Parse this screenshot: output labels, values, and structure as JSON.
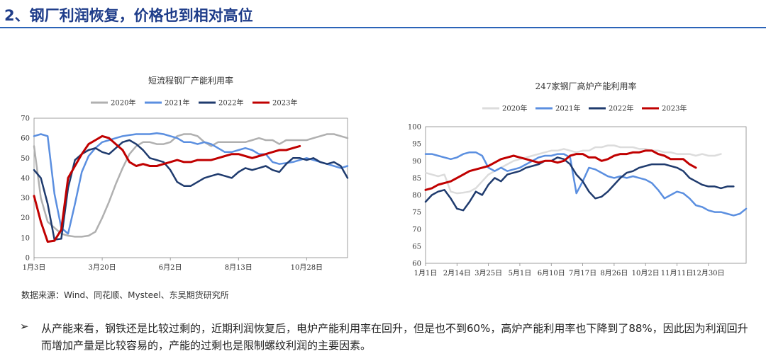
{
  "header": {
    "title": "2、钢厂利润恢复，价格也到相对高位"
  },
  "chart_data": [
    {
      "type": "line",
      "title": "短流程钢厂产能利用率",
      "x_ticks": [
        "1月3日",
        "3月20日",
        "6月2日",
        "8月13日",
        "10月28日"
      ],
      "x_ticks_at": [
        1,
        11,
        21,
        31,
        41
      ],
      "x_range": [
        1,
        47
      ],
      "ylim": [
        0,
        70
      ],
      "y_ticks": [
        0,
        10,
        20,
        30,
        40,
        50,
        60,
        70
      ],
      "legend_position": "top",
      "colors": [
        "#b0b0b0",
        "#5b8fe0",
        "#1f3b6e",
        "#c00000"
      ],
      "series": [
        {
          "name": "2020年",
          "x": [
            1,
            2,
            3,
            4,
            5,
            6,
            7,
            8,
            9,
            10,
            11,
            12,
            13,
            14,
            15,
            16,
            17,
            18,
            19,
            20,
            21,
            22,
            23,
            24,
            25,
            26,
            27,
            28,
            29,
            30,
            31,
            32,
            33,
            34,
            35,
            36,
            37,
            38,
            39,
            40,
            41,
            42,
            43,
            44,
            45,
            46,
            47
          ],
          "y": [
            56,
            30,
            18,
            15,
            12,
            11,
            10.5,
            10.5,
            11,
            13,
            20,
            28,
            37,
            45,
            52,
            56,
            58,
            58,
            57,
            57,
            58,
            61,
            62,
            62,
            61,
            58,
            56,
            58,
            58,
            58,
            58,
            58,
            59,
            60,
            59,
            59,
            57,
            59,
            59,
            59,
            59,
            60,
            61,
            62,
            62,
            61,
            60
          ]
        },
        {
          "name": "2021年",
          "x": [
            1,
            2,
            3,
            4,
            5,
            6,
            7,
            8,
            9,
            10,
            11,
            12,
            13,
            14,
            15,
            16,
            17,
            18,
            19,
            20,
            21,
            22,
            23,
            24,
            25,
            26,
            27,
            28,
            29,
            30,
            31,
            32,
            33,
            34,
            35,
            36,
            37,
            38,
            39,
            40,
            41,
            42,
            43,
            44,
            45,
            46,
            47
          ],
          "y": [
            61,
            62,
            61,
            32,
            15,
            12,
            27,
            43,
            51,
            55,
            58,
            59,
            60,
            61,
            61.5,
            62,
            62,
            62,
            62.5,
            62,
            61,
            60,
            58,
            58,
            57,
            58,
            57,
            55,
            53,
            53,
            54,
            55,
            54,
            52,
            52,
            48,
            47,
            47.5,
            48,
            49,
            50,
            49,
            48,
            47,
            46,
            45,
            46
          ]
        },
        {
          "name": "2022年",
          "x": [
            1,
            2,
            3,
            4,
            5,
            6,
            7,
            8,
            9,
            10,
            11,
            12,
            13,
            14,
            15,
            16,
            17,
            18,
            19,
            20,
            21,
            22,
            23,
            24,
            25,
            26,
            27,
            28,
            29,
            30,
            31,
            32,
            33,
            34,
            35,
            36,
            37,
            38,
            39,
            40,
            41,
            42,
            43,
            44,
            45,
            46,
            47
          ],
          "y": [
            44,
            40,
            27,
            9,
            9.5,
            35,
            49,
            52,
            54,
            55,
            53,
            52,
            55,
            58,
            59,
            57,
            54,
            50,
            49,
            48,
            44,
            38,
            36,
            36,
            38,
            40,
            41,
            42,
            41,
            40,
            43,
            45,
            44,
            45,
            46,
            44,
            43,
            47,
            50,
            50,
            49,
            50,
            48,
            47,
            48,
            46,
            40
          ]
        },
        {
          "name": "2023年",
          "x": [
            1,
            2,
            3,
            4,
            5,
            6,
            7,
            8,
            9,
            10,
            11,
            12,
            13,
            14,
            15,
            16,
            17,
            18,
            19,
            20,
            21,
            22,
            23,
            24,
            25,
            26,
            27,
            28,
            29,
            30,
            31,
            32,
            33,
            34,
            35,
            36,
            37,
            38,
            39,
            40
          ],
          "y": [
            31,
            18,
            8,
            8.5,
            14,
            40,
            46,
            52,
            57,
            59,
            61,
            60,
            57,
            54,
            48,
            46,
            47,
            46,
            46,
            47,
            48,
            49,
            48,
            48,
            49,
            49,
            49,
            50,
            51,
            52,
            52,
            51,
            50,
            51,
            52,
            53,
            54,
            54,
            55,
            56
          ]
        }
      ]
    },
    {
      "type": "line",
      "title": "247家钢厂高炉产能利用率",
      "x_ticks": [
        "1月1日",
        "2月14日",
        "3月25日",
        "5月1日",
        "6月10日",
        "7月17日",
        "8月26日",
        "10月2日",
        "11月11日",
        "12月30日"
      ],
      "x_ticks_at": [
        1,
        6,
        11,
        16,
        21,
        26,
        31,
        36,
        41,
        46
      ],
      "x_range": [
        1,
        52
      ],
      "ylim": [
        60,
        100
      ],
      "y_ticks": [
        60,
        65,
        70,
        75,
        80,
        85,
        90,
        95,
        100
      ],
      "legend_position": "top",
      "colors": [
        "#dcdcdc",
        "#5b8fe0",
        "#1f3b6e",
        "#c00000"
      ],
      "series": [
        {
          "name": "2020年",
          "x": [
            1,
            2,
            3,
            4,
            5,
            6,
            7,
            8,
            9,
            10,
            11,
            12,
            13,
            14,
            15,
            16,
            17,
            18,
            19,
            20,
            21,
            22,
            23,
            24,
            25,
            26,
            27,
            28,
            29,
            30,
            31,
            32,
            33,
            34,
            35,
            36,
            37,
            38,
            39,
            40,
            41,
            42,
            43,
            44,
            45,
            46,
            47,
            48
          ],
          "y": [
            86.5,
            86,
            85.5,
            86,
            81,
            80.5,
            80.7,
            81,
            82,
            84,
            86,
            87,
            88,
            89,
            90,
            90.5,
            91,
            91.5,
            92,
            92.5,
            93,
            93,
            93.5,
            93,
            92.5,
            93,
            93,
            94,
            94,
            94.5,
            94.5,
            94,
            94,
            94,
            93.5,
            93.5,
            93,
            93,
            92.5,
            92.5,
            92,
            92,
            92,
            91.5,
            92,
            91.5,
            91.5,
            92
          ]
        },
        {
          "name": "2021年",
          "x": [
            1,
            2,
            3,
            4,
            5,
            6,
            7,
            8,
            9,
            10,
            11,
            12,
            13,
            14,
            15,
            16,
            17,
            18,
            19,
            20,
            21,
            22,
            23,
            24,
            25,
            26,
            27,
            28,
            29,
            30,
            31,
            32,
            33,
            34,
            35,
            36,
            37,
            38,
            39,
            40,
            41,
            42,
            43,
            44,
            45,
            46,
            47,
            48,
            49,
            50,
            51,
            52
          ],
          "y": [
            92,
            92,
            91.5,
            91,
            90.5,
            91,
            92,
            92.5,
            92.5,
            91.5,
            88,
            87,
            88,
            87,
            87.5,
            88,
            89,
            90,
            91,
            91.5,
            91.5,
            92,
            92,
            91,
            80.5,
            84,
            88,
            87.5,
            86.5,
            85.5,
            85,
            85.5,
            85,
            85.5,
            85,
            84.5,
            83.5,
            81.5,
            79,
            80,
            81,
            80.5,
            79,
            77,
            76.5,
            75.5,
            75,
            75,
            74.5,
            74,
            74.5,
            76
          ]
        },
        {
          "name": "2022年",
          "x": [
            1,
            2,
            3,
            4,
            5,
            6,
            7,
            8,
            9,
            10,
            11,
            12,
            13,
            14,
            15,
            16,
            17,
            18,
            19,
            20,
            21,
            22,
            23,
            24,
            25,
            26,
            27,
            28,
            29,
            30,
            31,
            32,
            33,
            34,
            35,
            36,
            37,
            38,
            39,
            40,
            41,
            42,
            43,
            44,
            45,
            46,
            47,
            48,
            49,
            50
          ],
          "y": [
            78,
            80,
            81,
            81.5,
            79,
            76,
            75.5,
            78,
            81,
            80,
            83,
            85,
            84,
            86,
            86.5,
            87,
            88,
            88.5,
            89,
            90,
            90,
            91,
            90.5,
            89,
            86,
            84,
            81,
            79,
            79.5,
            81,
            83,
            85,
            86.5,
            87,
            88,
            88.5,
            89,
            89,
            89,
            88.5,
            88,
            87,
            85,
            84,
            83,
            82.5,
            82.5,
            82,
            82.5,
            82.5
          ]
        },
        {
          "name": "2023年",
          "x": [
            1,
            2,
            3,
            4,
            5,
            6,
            7,
            8,
            9,
            10,
            11,
            12,
            13,
            14,
            15,
            16,
            17,
            18,
            19,
            20,
            21,
            22,
            23,
            24,
            25,
            26,
            27,
            28,
            29,
            30,
            31,
            32,
            33,
            34,
            35,
            36,
            37,
            38,
            39,
            40,
            41,
            42,
            43,
            44
          ],
          "y": [
            81.5,
            82,
            83,
            83.5,
            84,
            85,
            86,
            87,
            87.5,
            88,
            88.5,
            89.5,
            90.5,
            91,
            91.5,
            91,
            90.5,
            90,
            89.5,
            90,
            90,
            89.5,
            90,
            91.5,
            92,
            92,
            91,
            91,
            90,
            90.5,
            91.5,
            92,
            92,
            92.5,
            92.5,
            93,
            93,
            92,
            91.5,
            90.5,
            90.5,
            90.5,
            89,
            88
          ]
        }
      ]
    }
  ],
  "footer": {
    "source": "数据来源：Wind、同花顺、Mysteel、东吴期货研究所",
    "bullet_marker": "➢",
    "bullet_text": "从产能来看，钢铁还是比较过剩的，近期利润恢复后，电炉产能利用率在回升，但是也不到60%，高炉产能利用率也下降到了88%，因此因为利润回升而增加产量是比较容易的，产能的过剩也是限制螺纹利润的主要因素。"
  }
}
